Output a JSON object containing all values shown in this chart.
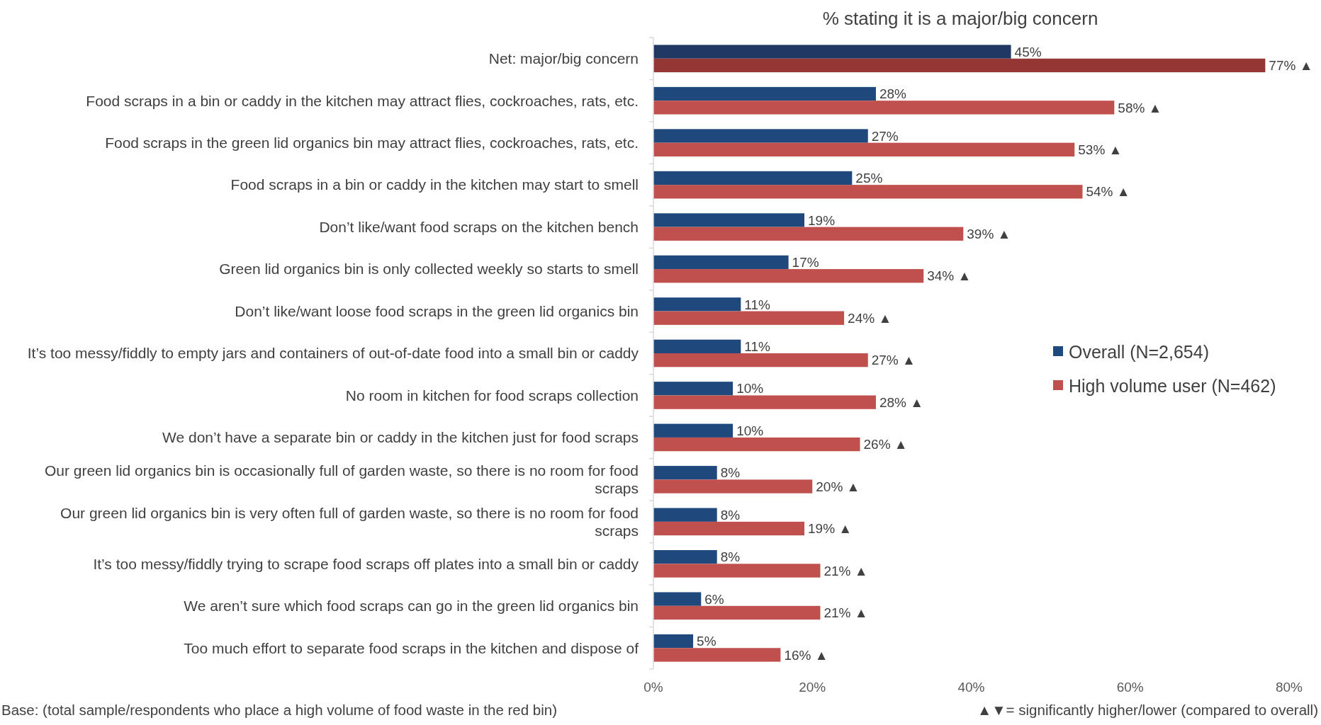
{
  "chart_data": {
    "type": "bar",
    "orientation": "horizontal",
    "title": "% stating it is a major/big concern",
    "categories": [
      "Net: major/big concern",
      "Food scraps in a bin or caddy in the kitchen may attract flies, cockroaches, rats, etc.",
      "Food scraps in the green lid organics bin may attract flies, cockroaches, rats, etc.",
      "Food scraps in a bin or caddy in the kitchen may start to smell",
      "Don’t like/want food scraps on the kitchen bench",
      "Green lid organics bin is only collected weekly so starts to smell",
      "Don’t like/want loose food scraps in the green lid organics bin",
      "It’s too messy/fiddly to empty jars and containers of out-of-date food into a small bin or caddy",
      "No room in kitchen for food scraps collection",
      "We don’t have a separate bin or caddy in the kitchen just for food scraps",
      "Our green lid organics bin is occasionally full of garden waste, so there is no room for food scraps",
      "Our green lid organics bin is very often full of garden waste, so there is no room for food scraps",
      "It’s too messy/fiddly trying to scrape food scraps off plates into a small bin or caddy",
      "We aren’t sure which food scraps can go in the green lid organics bin",
      "Too much effort to separate food scraps in the kitchen and dispose of"
    ],
    "series": [
      {
        "name": "Overall (N=2,654)",
        "color": "#1f497d",
        "colors": [
          "#1f3864",
          "#1f497d",
          "#1f497d",
          "#1f497d",
          "#1f497d",
          "#1f497d",
          "#1f497d",
          "#1f497d",
          "#1f497d",
          "#1f497d",
          "#1f497d",
          "#1f497d",
          "#1f497d",
          "#1f497d",
          "#1f497d"
        ],
        "values": [
          45,
          28,
          27,
          25,
          19,
          17,
          11,
          11,
          10,
          10,
          8,
          8,
          8,
          6,
          5
        ],
        "value_labels": [
          "45%",
          "28%",
          "27%",
          "25%",
          "19%",
          "17%",
          "11%",
          "11%",
          "10%",
          "10%",
          "8%",
          "8%",
          "8%",
          "6%",
          "5%"
        ]
      },
      {
        "name": "High volume user (N=462)",
        "color": "#c0504d",
        "colors": [
          "#943634",
          "#c0504d",
          "#c0504d",
          "#c0504d",
          "#c0504d",
          "#c0504d",
          "#c0504d",
          "#c0504d",
          "#c0504d",
          "#c0504d",
          "#c0504d",
          "#c0504d",
          "#c0504d",
          "#c0504d",
          "#c0504d"
        ],
        "values": [
          77,
          58,
          53,
          54,
          39,
          34,
          24,
          27,
          28,
          26,
          20,
          19,
          21,
          21,
          16
        ],
        "value_labels": [
          "77% ▲",
          "58% ▲",
          "53% ▲",
          "54% ▲",
          "39% ▲",
          "34% ▲",
          "24% ▲",
          "27% ▲",
          "28% ▲",
          "26% ▲",
          "20% ▲",
          "19% ▲",
          "21% ▲",
          "21% ▲",
          "16% ▲"
        ]
      }
    ],
    "xlim": [
      0,
      80
    ],
    "xticks": [
      {
        "value": 0,
        "label": "0%"
      },
      {
        "value": 20,
        "label": "20%"
      },
      {
        "value": 40,
        "label": "40%"
      },
      {
        "value": 60,
        "label": "60%"
      },
      {
        "value": 80,
        "label": "80%"
      }
    ],
    "legend": "right",
    "grid": false,
    "annotations": [
      "Base: (total sample/respondents who place a high volume of food waste in the red bin)",
      "▲▼= significantly higher/lower (compared to overall)"
    ]
  }
}
